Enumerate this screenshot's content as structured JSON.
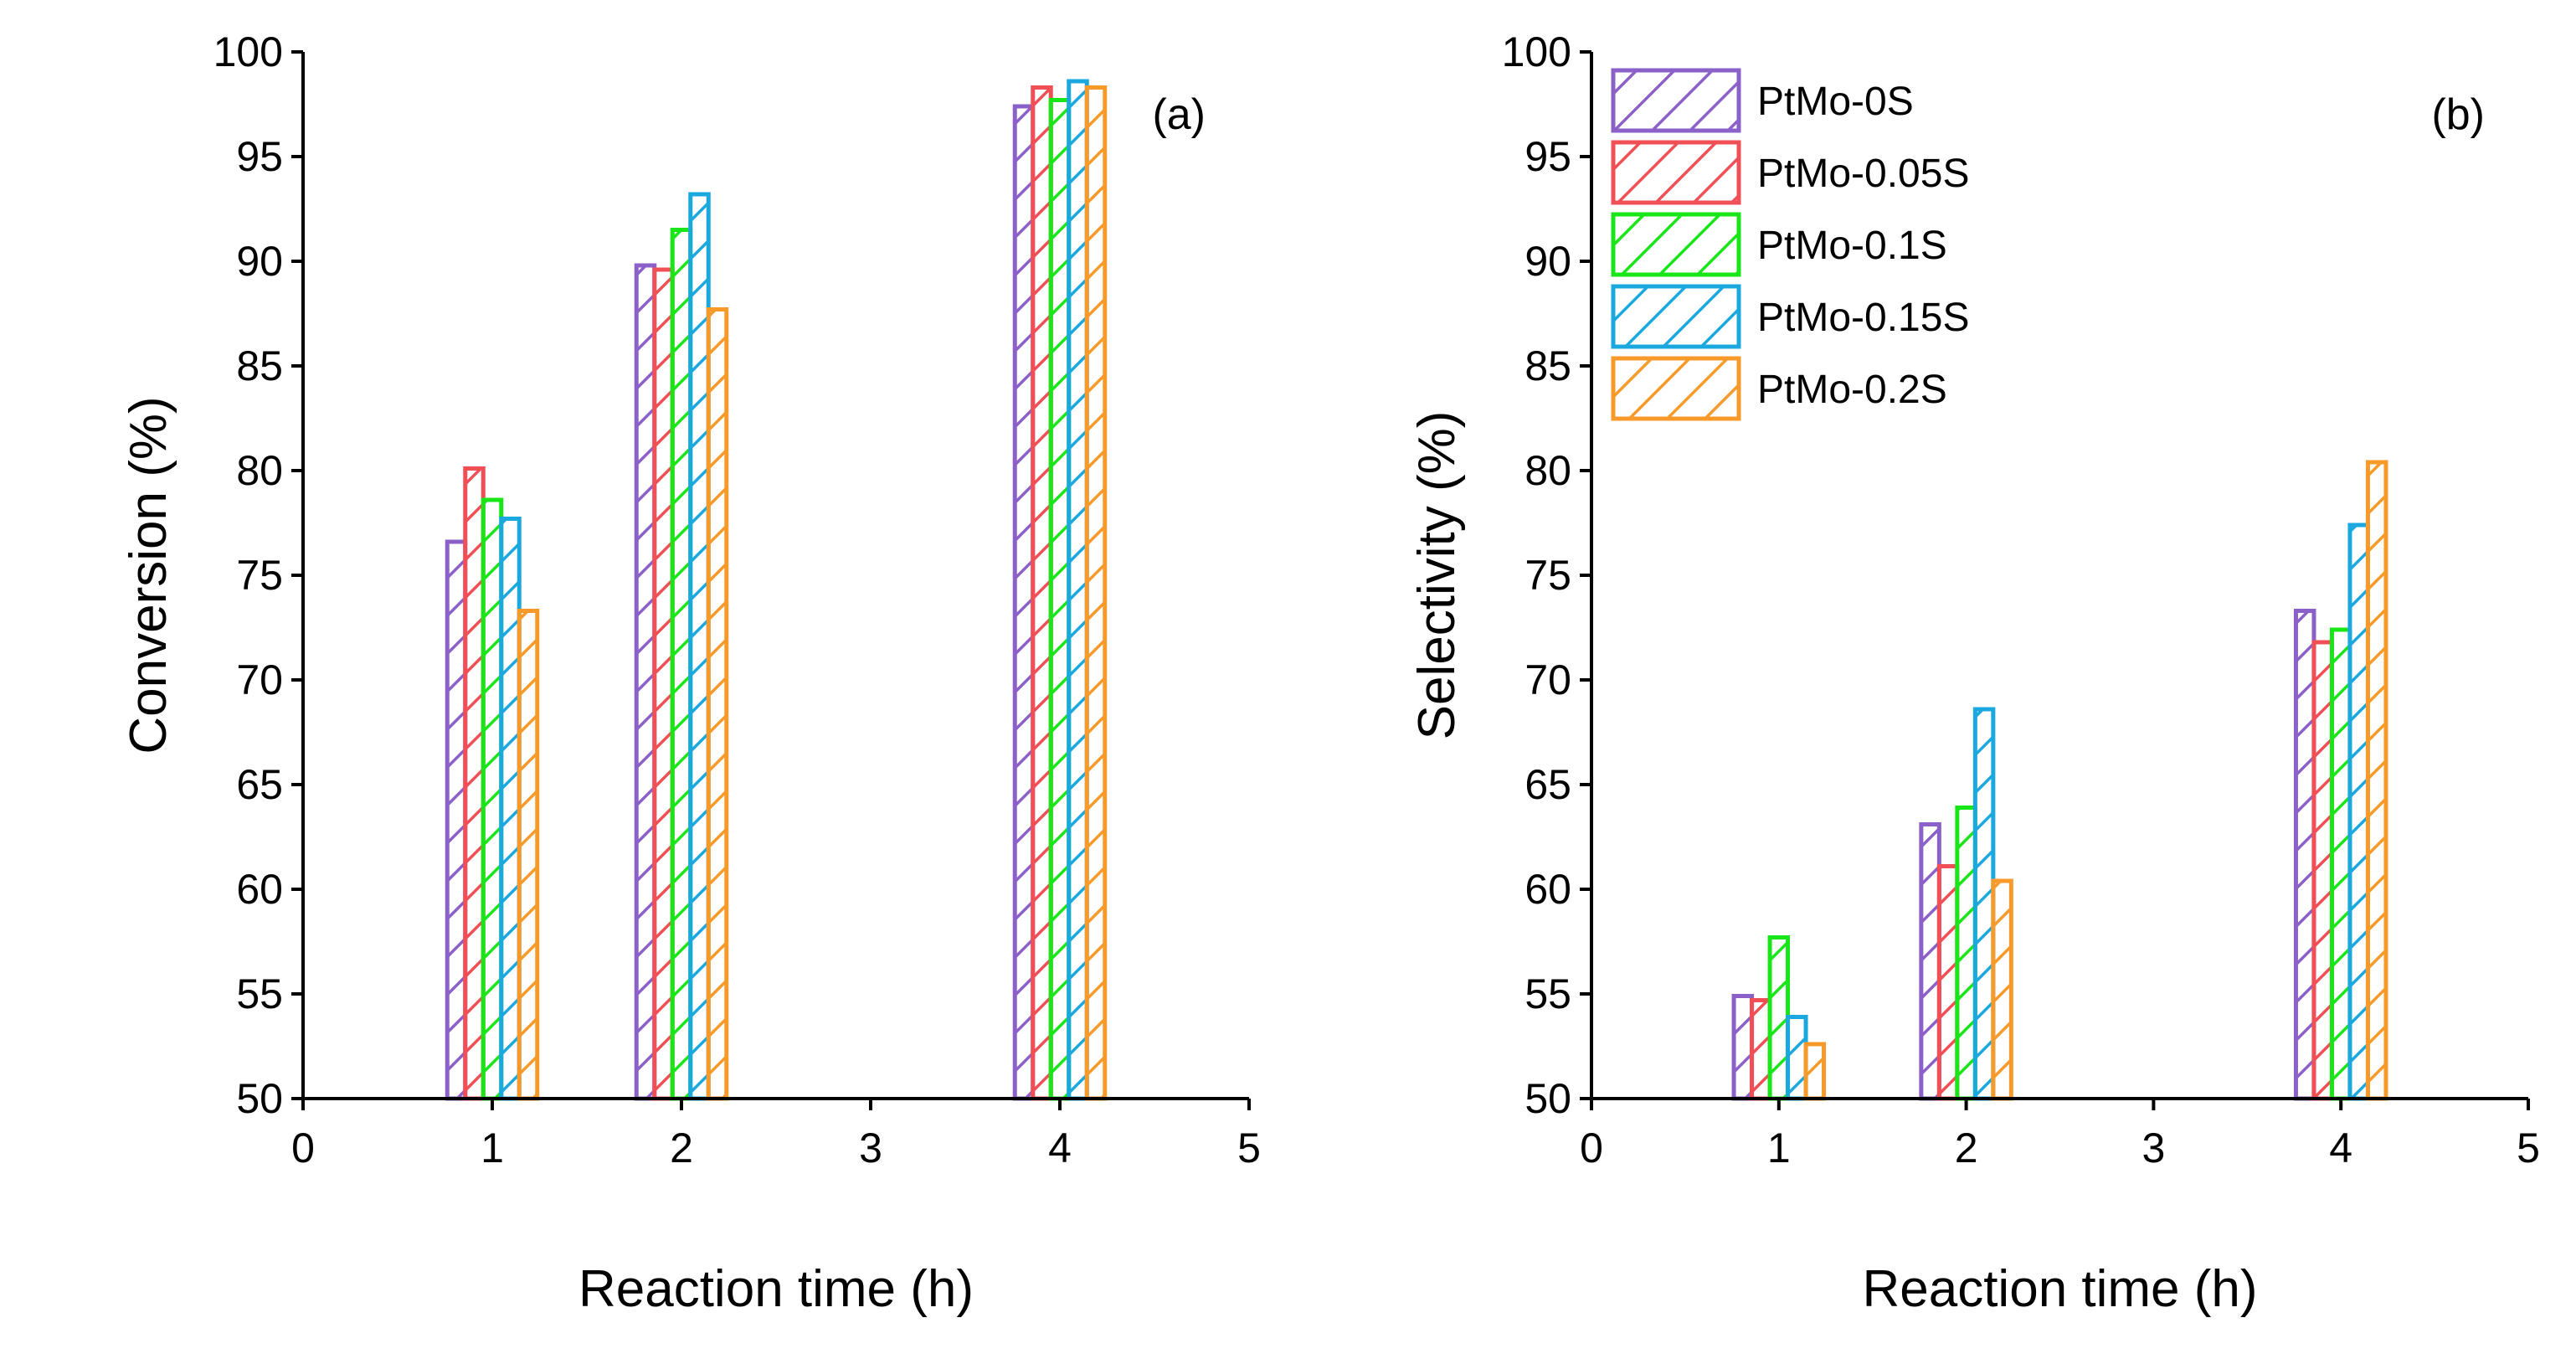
{
  "chart_data": [
    {
      "panel": "(a)",
      "type": "bar",
      "xlabel": "Reaction time (h)",
      "ylabel": "Conversion (%)",
      "xlim": [
        0,
        5
      ],
      "ylim": [
        50,
        100
      ],
      "xticks": [
        "0",
        "1",
        "2",
        "3",
        "4",
        "5"
      ],
      "yticks": [
        "50",
        "55",
        "60",
        "65",
        "70",
        "75",
        "80",
        "85",
        "90",
        "95",
        "100"
      ],
      "x": [
        1,
        2,
        4
      ],
      "series": [
        {
          "name": "PtMo-0S",
          "color": "#8b60c9",
          "values": [
            76.6,
            89.8,
            97.4
          ]
        },
        {
          "name": "PtMo-0.05S",
          "color": "#f04f55",
          "values": [
            80.1,
            89.6,
            98.3
          ]
        },
        {
          "name": "PtMo-0.1S",
          "color": "#19e619",
          "values": [
            78.6,
            91.5,
            97.7
          ]
        },
        {
          "name": "PtMo-0.15S",
          "color": "#1ba8df",
          "values": [
            77.7,
            93.2,
            98.6
          ]
        },
        {
          "name": "PtMo-0.2S",
          "color": "#f79a2a",
          "values": [
            73.3,
            87.7,
            98.3
          ]
        }
      ]
    },
    {
      "panel": "(b)",
      "type": "bar",
      "xlabel": "Reaction time (h)",
      "ylabel": "Selectivity (%)",
      "xlim": [
        0,
        5
      ],
      "ylim": [
        50,
        100
      ],
      "xticks": [
        "0",
        "1",
        "2",
        "3",
        "4",
        "5"
      ],
      "yticks": [
        "50",
        "55",
        "60",
        "65",
        "70",
        "75",
        "80",
        "85",
        "90",
        "95",
        "100"
      ],
      "x": [
        1,
        2,
        4
      ],
      "legend_position": "top-left",
      "series": [
        {
          "name": "PtMo-0S",
          "color": "#8b60c9",
          "values": [
            54.9,
            63.1,
            73.3
          ]
        },
        {
          "name": "PtMo-0.05S",
          "color": "#f04f55",
          "values": [
            54.7,
            61.1,
            71.8
          ]
        },
        {
          "name": "PtMo-0.1S",
          "color": "#19e619",
          "values": [
            57.7,
            63.9,
            72.4
          ]
        },
        {
          "name": "PtMo-0.15S",
          "color": "#1ba8df",
          "values": [
            53.9,
            68.6,
            77.4
          ]
        },
        {
          "name": "PtMo-0.2S",
          "color": "#f79a2a",
          "values": [
            52.6,
            60.4,
            80.4
          ]
        }
      ]
    }
  ]
}
